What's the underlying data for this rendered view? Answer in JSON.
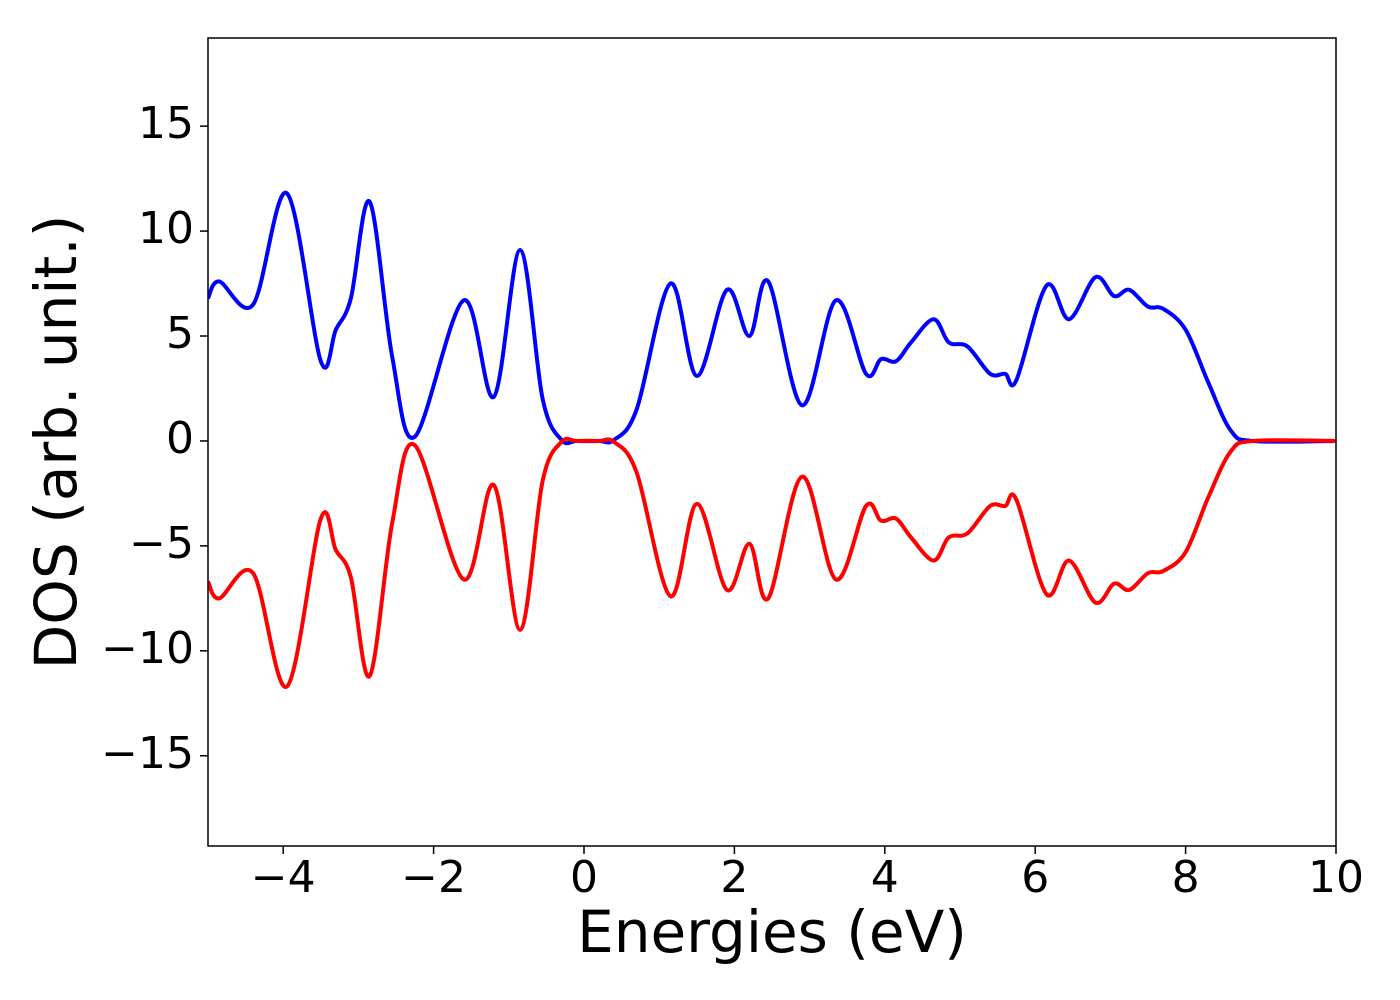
{
  "chart_data": {
    "type": "line",
    "xlabel": "Energies (eV)",
    "ylabel": "DOS (arb. unit.)",
    "x": [
      -5,
      -4.85,
      -4.4,
      -3.95,
      -3.5,
      -3.3,
      -3.1,
      -2.85,
      -2.55,
      -2.25,
      -1.6,
      -1.2,
      -0.85,
      -0.55,
      -0.3,
      -0.1,
      0.2,
      0.4,
      0.7,
      1.15,
      1.5,
      1.9,
      2.2,
      2.45,
      2.9,
      3.35,
      3.75,
      3.95,
      4.15,
      4.35,
      4.65,
      4.85,
      5.1,
      5.4,
      5.6,
      5.75,
      6.15,
      6.45,
      6.8,
      7.05,
      7.25,
      7.5,
      7.7,
      8.0,
      8.3,
      8.6,
      8.9,
      10
    ],
    "series": [
      {
        "color": "#0000ff",
        "values": [
          6.8,
          7.6,
          6.5,
          11.8,
          3.8,
          5.3,
          6.8,
          11.4,
          4.0,
          0.2,
          6.7,
          2.1,
          9.1,
          2.0,
          0.05,
          0.0,
          0.0,
          0.05,
          1.5,
          7.5,
          3.1,
          7.2,
          5.0,
          7.6,
          1.7,
          6.7,
          3.2,
          3.9,
          3.8,
          4.7,
          5.8,
          4.7,
          4.5,
          3.2,
          3.2,
          2.9,
          7.4,
          5.8,
          7.8,
          6.9,
          7.2,
          6.4,
          6.3,
          5.3,
          2.8,
          0.5,
          0.0,
          0.0
        ]
      },
      {
        "color": "#ff0000",
        "values": [
          -6.7,
          -7.5,
          -6.3,
          -11.7,
          -3.7,
          -5.2,
          -6.5,
          -11.2,
          -3.9,
          -0.2,
          -6.6,
          -2.1,
          -9.0,
          -1.9,
          -0.05,
          0.0,
          0.0,
          -0.05,
          -1.5,
          -7.4,
          -3.0,
          -7.1,
          -4.9,
          -7.5,
          -1.7,
          -6.6,
          -3.1,
          -3.8,
          -3.7,
          -4.6,
          -5.7,
          -4.6,
          -4.4,
          -3.1,
          -3.1,
          -2.8,
          -7.3,
          -5.7,
          -7.7,
          -6.8,
          -7.1,
          -6.3,
          -6.2,
          -5.3,
          -2.7,
          -0.5,
          0.0,
          0.0
        ]
      }
    ],
    "xlim": [
      -5,
      10
    ],
    "ylim": [
      -19.3,
      19.2
    ],
    "xticks": [
      {
        "value": -4,
        "label": "−4"
      },
      {
        "value": -2,
        "label": "−2"
      },
      0,
      2,
      4,
      6,
      8,
      10
    ],
    "yticks": [
      {
        "value": -15,
        "label": "−15"
      },
      {
        "value": -10,
        "label": "−10"
      },
      {
        "value": -5,
        "label": "−5"
      },
      0,
      5,
      10,
      15
    ],
    "grid": false
  }
}
